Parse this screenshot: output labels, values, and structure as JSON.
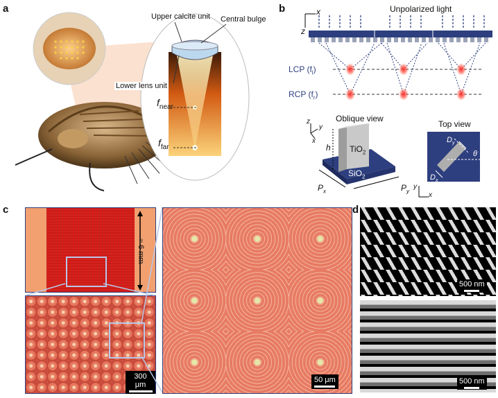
{
  "panel_a": {
    "letter": "a",
    "upper_unit": "Upper calcite unit",
    "central_bulge": "Central bulge",
    "lower_unit": "Lower lens unit",
    "f_near": "f",
    "f_near_sub": "near",
    "f_far": "f",
    "f_far_sub": "far"
  },
  "panel_b": {
    "letter": "b",
    "light": "Unpolarized light",
    "axis_x": "x",
    "axis_z": "z",
    "lcp": "LCP (f",
    "lcp_sub": "l",
    "lcp_close": ")",
    "rcp": "RCP (f",
    "rcp_sub": "r",
    "rcp_close": ")",
    "oblique_title": "Oblique view",
    "top_title": "Top view",
    "tio2": "TiO",
    "tio2_sub": "2",
    "sio2": "SiO",
    "sio2_sub": "2",
    "h": "h",
    "px": "P",
    "px_sub": "x",
    "py": "P",
    "py_sub": "y",
    "dy": "D",
    "dy_sub": "y",
    "dx": "D",
    "dx_sub": "x",
    "theta": "θ",
    "oblique_axes": {
      "z": "z",
      "y": "y",
      "x": "x"
    },
    "top_axes": {
      "y": "y",
      "x": "x"
    }
  },
  "panel_c": {
    "letter": "c",
    "size_label": "≈ 6 mm",
    "scale_300": "300 μm",
    "scale_50": "50 μm"
  },
  "panel_d": {
    "letter": "d",
    "scale_top": "500 nm",
    "scale_bottom": "500 nm"
  },
  "colors": {
    "substrate": "#2e3f7f",
    "focus": "#e8202a",
    "lens_orange": "#f08a2a",
    "micro_bg": "#e77b63",
    "micro_ring": "#f4b3a0"
  }
}
